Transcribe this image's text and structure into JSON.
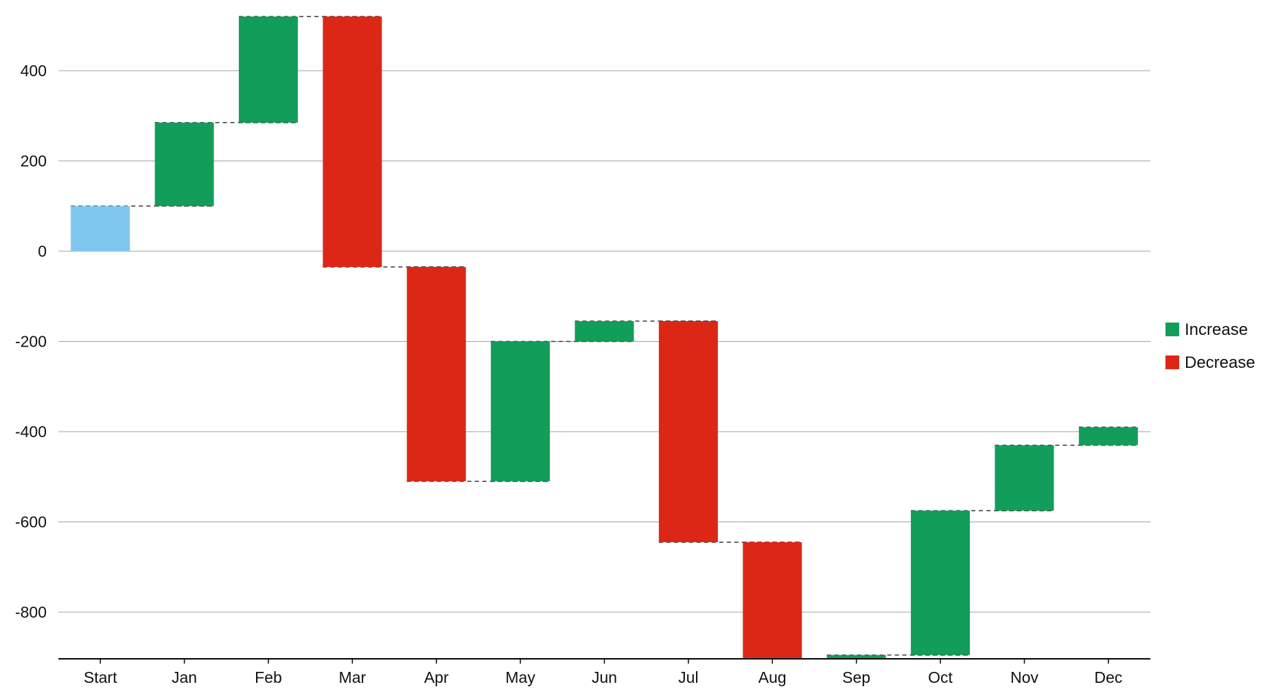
{
  "chart_data": {
    "type": "bar",
    "subtype": "waterfall",
    "title": "",
    "xlabel": "",
    "ylabel": "",
    "categories": [
      "Start",
      "Jan",
      "Feb",
      "Mar",
      "Apr",
      "May",
      "Jun",
      "Jul",
      "Aug",
      "Sep",
      "Oct",
      "Nov",
      "Dec"
    ],
    "values": [
      100,
      185,
      235,
      -555,
      -475,
      310,
      45,
      -490,
      -315,
      65,
      320,
      145,
      40
    ],
    "cumulative": [
      100,
      285,
      520,
      -35,
      -510,
      -200,
      -155,
      -645,
      -960,
      -895,
      -575,
      -430,
      -390
    ],
    "ylim": [
      -910,
      520
    ],
    "yticks": [
      -800,
      -600,
      -400,
      -200,
      0,
      200,
      400
    ],
    "ytick_labels": [
      "-800",
      "-600",
      "-400",
      "-200",
      "0",
      "200",
      "400"
    ],
    "grid": true,
    "connectors": "dashed",
    "legend": {
      "position": "right",
      "items": [
        {
          "label": "Increase",
          "color": "#129E5A"
        },
        {
          "label": "Decrease",
          "color": "#DD2716"
        }
      ]
    },
    "colors": {
      "start": "#7EC6EE",
      "increase": "#129E5A",
      "decrease": "#DD2716",
      "grid": "#a0a0a0",
      "axis": "#000000",
      "connector": "#333333"
    }
  }
}
